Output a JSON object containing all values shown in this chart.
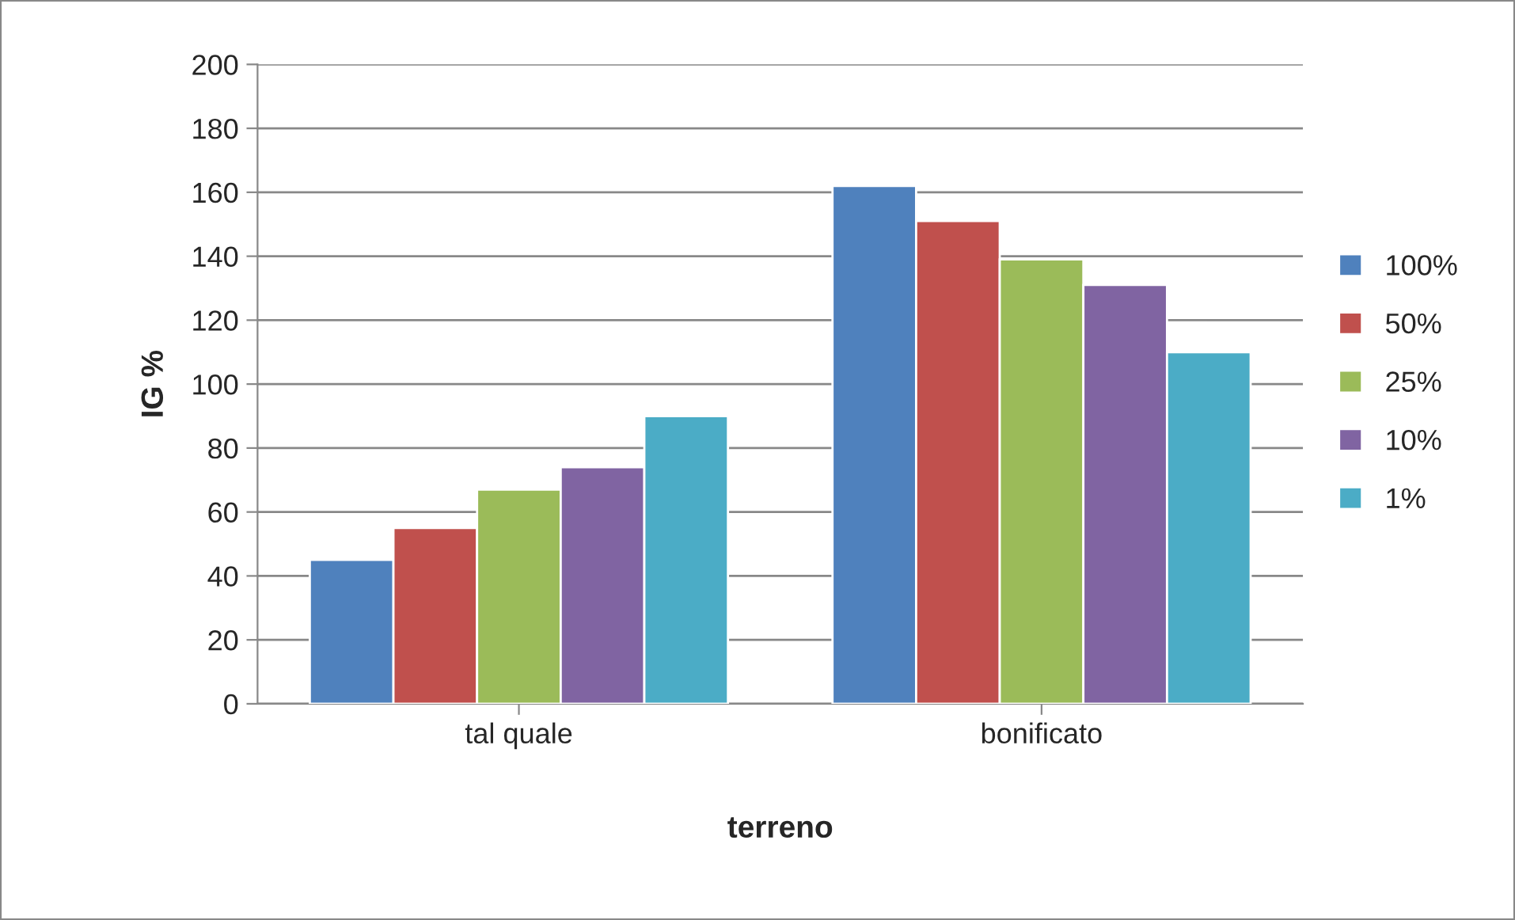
{
  "chart_data": {
    "type": "bar",
    "xlabel": "terreno",
    "ylabel": "IG %",
    "categories": [
      "tal quale",
      "bonificato"
    ],
    "series": [
      {
        "name": "100%",
        "color": "#4f81bd",
        "values": [
          45,
          162
        ]
      },
      {
        "name": "50%",
        "color": "#c0504d",
        "values": [
          55,
          151
        ]
      },
      {
        "name": "25%",
        "color": "#9bbb59",
        "values": [
          67,
          139
        ]
      },
      {
        "name": "10%",
        "color": "#8064a2",
        "values": [
          74,
          131
        ]
      },
      {
        "name": "1%",
        "color": "#4bacc6",
        "values": [
          90,
          110
        ]
      }
    ],
    "ylim": [
      0,
      200
    ],
    "yticks": [
      0,
      20,
      40,
      60,
      80,
      100,
      120,
      140,
      160,
      180,
      200
    ],
    "grid": "y",
    "legend": "right"
  }
}
